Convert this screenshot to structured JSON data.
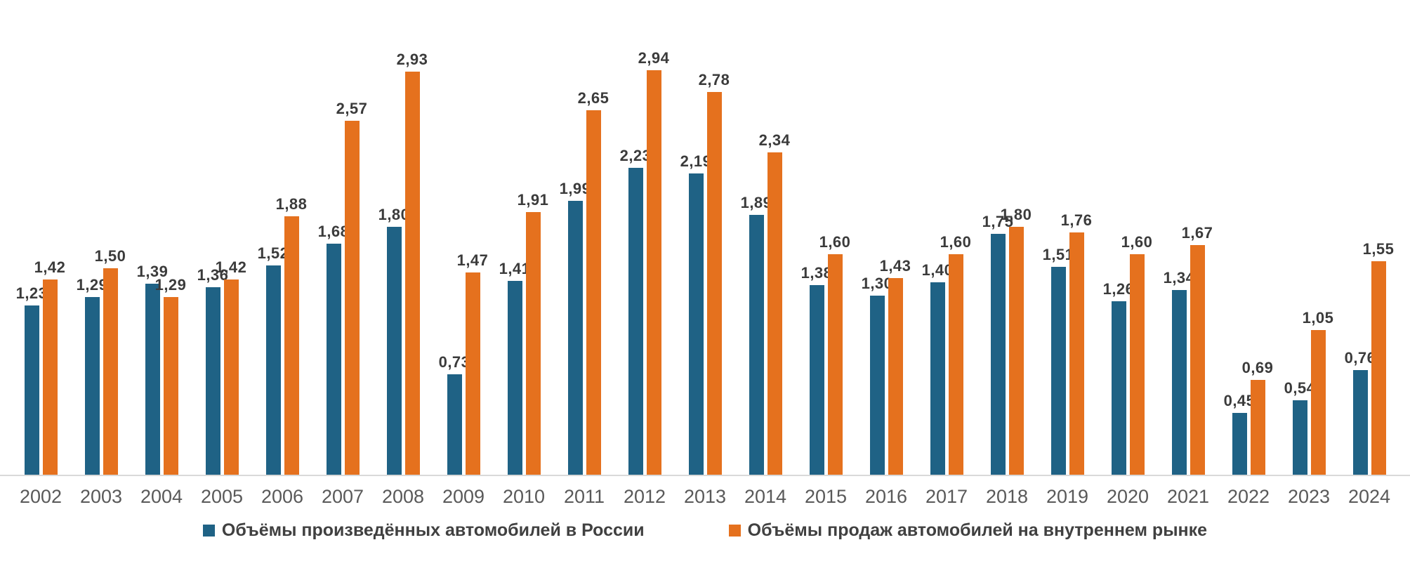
{
  "chart_data": {
    "type": "bar",
    "title": "",
    "categories": [
      "2002",
      "2003",
      "2004",
      "2005",
      "2006",
      "2007",
      "2008",
      "2009",
      "2010",
      "2011",
      "2012",
      "2013",
      "2014",
      "2015",
      "2016",
      "2017",
      "2018",
      "2019",
      "2020",
      "2021",
      "2022",
      "2023",
      "2024"
    ],
    "series": [
      {
        "name": "Объёмы произведённых автомобилей в России",
        "color": "#1F6285",
        "values": [
          1.23,
          1.29,
          1.39,
          1.36,
          1.52,
          1.68,
          1.8,
          0.73,
          1.41,
          1.99,
          2.23,
          2.19,
          1.89,
          1.38,
          1.3,
          1.4,
          1.75,
          1.51,
          1.26,
          1.34,
          0.45,
          0.54,
          0.76
        ]
      },
      {
        "name": "Объёмы продаж автомобилей на внутреннем рынке",
        "color": "#E5711E",
        "values": [
          1.42,
          1.5,
          1.29,
          1.42,
          1.88,
          2.57,
          2.93,
          1.47,
          1.91,
          2.65,
          2.94,
          2.78,
          2.34,
          1.6,
          1.43,
          1.6,
          1.8,
          1.76,
          1.6,
          1.67,
          0.69,
          1.05,
          1.55
        ]
      }
    ],
    "value_label_decimal_separator": ",",
    "value_label_color": "#3B3B3B",
    "ylim": [
      0,
      3.0
    ],
    "grid": false,
    "legend_position": "bottom-center",
    "axis": {
      "line_color": "#D9D9D9",
      "tick_color": "#595959"
    }
  }
}
